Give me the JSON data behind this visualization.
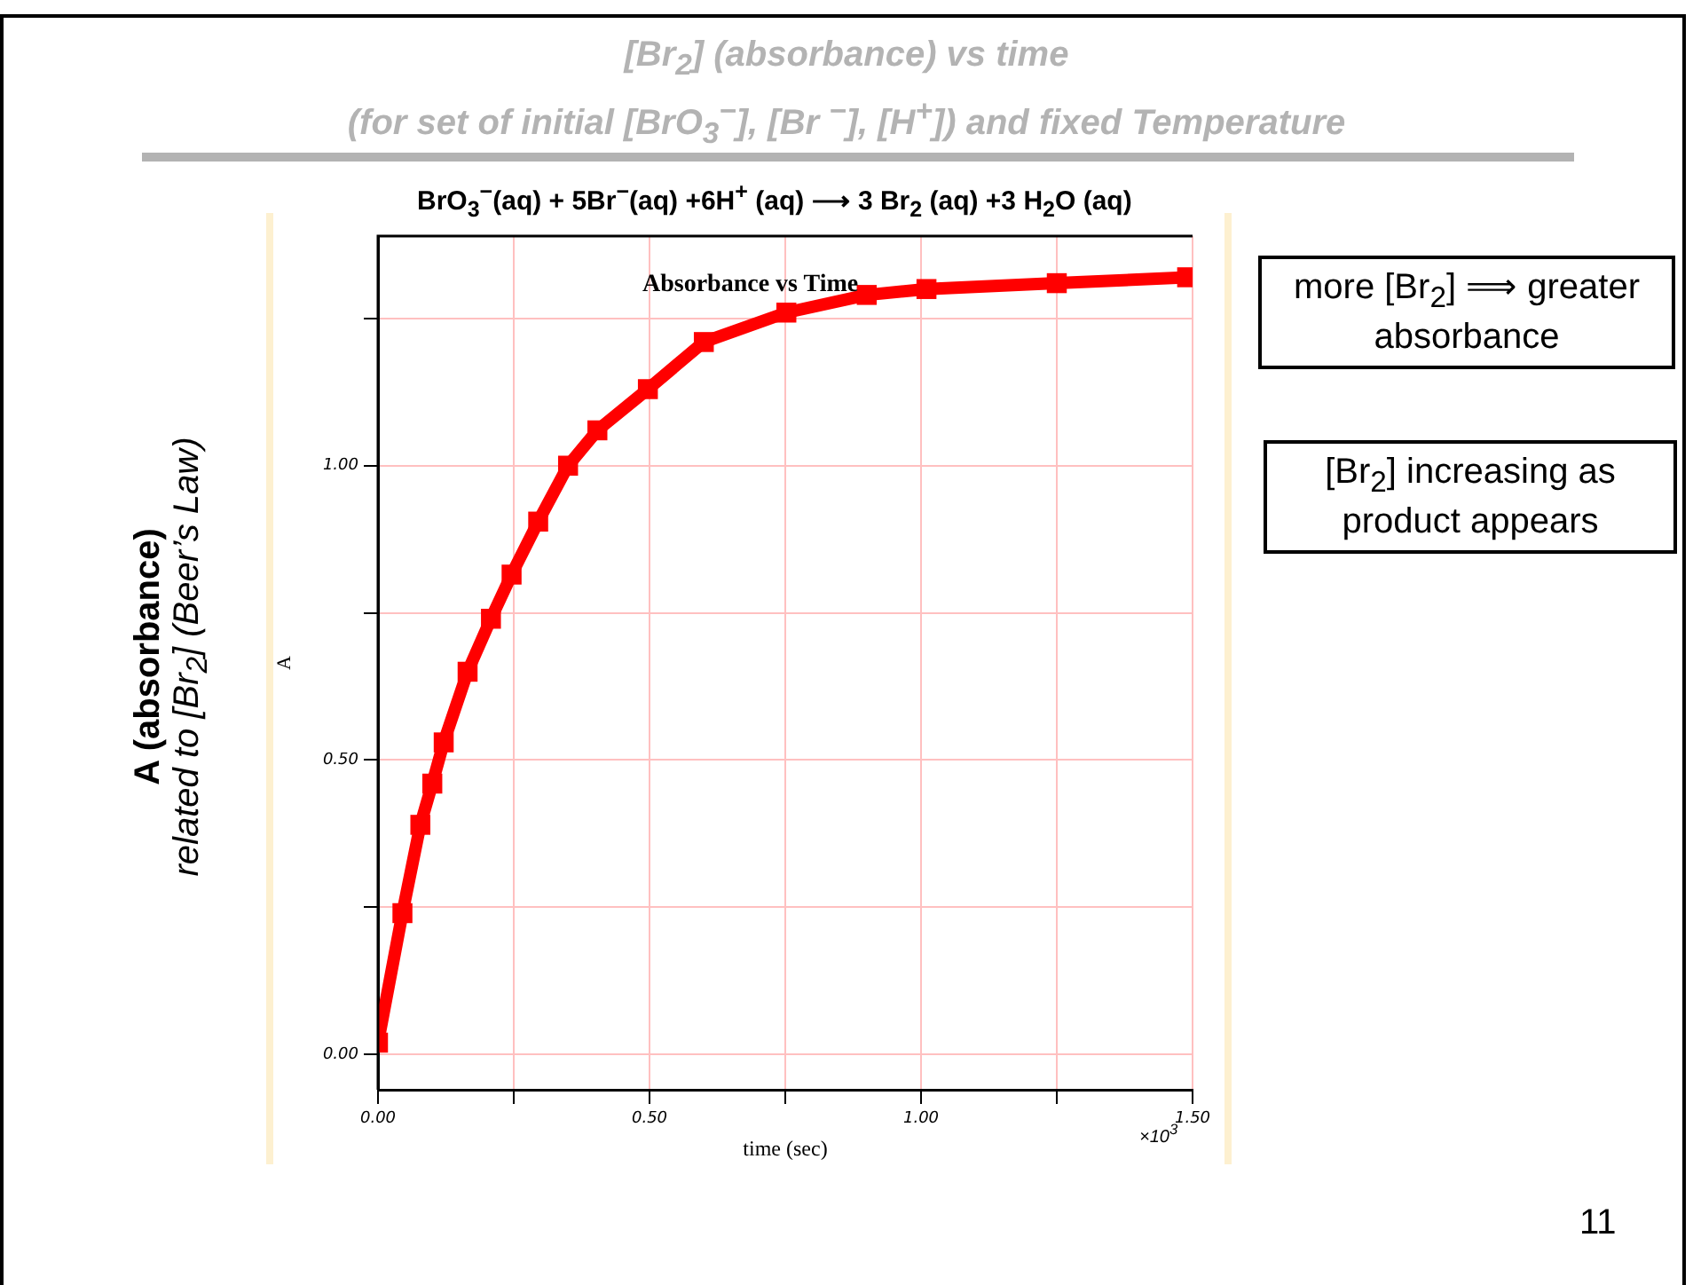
{
  "chart_data": {
    "type": "line",
    "title": "[Br$_{2}$]  (absorbance)  vs time",
    "subtitle": "(for set of initial [BrO$_{3}$$^{−}$], [Br $^{−}$], [H$^{+}$]) and fixed Temperature",
    "xlabel": "time (sec)",
    "ylabel": "A",
    "annotations": [
      "BrO$_{3}$$^{−}$(aq) + 5Br$^{−}$(aq) +6H$^{+}$ (aq)  ⟶  3 Br$_{2}$ (aq) +3 H$_{2}$O (aq)",
      "Absorbance vs Time",
      "A (absorbance)",
      "related to  [Br$_{2}$]  (Beer’s Law)",
      "more [Br$_{2}$] ⟹ greater absorbance",
      "[Br$_{2}$] increasing as product appears",
      "×10$^{3}$",
      "11"
    ],
    "x": [
      0,
      0.045,
      0.078,
      0.1,
      0.121,
      0.165,
      0.208,
      0.246,
      0.295,
      0.35,
      0.404,
      0.497,
      0.6,
      0.752,
      0.9,
      1.01,
      1.25,
      1.49
    ],
    "series": [
      {
        "color": "#ff0000",
        "values": [
          0.02,
          0.24,
          0.39,
          0.46,
          0.53,
          0.65,
          0.74,
          0.815,
          0.905,
          1.0,
          1.06,
          1.13,
          1.21,
          1.26,
          1.29,
          1.3,
          1.31,
          1.32
        ]
      }
    ],
    "xlim": [
      0,
      1.5
    ],
    "ylim": [
      -0.06,
      1.39
    ],
    "xticks": [
      {
        "value": 0,
        "label": "0.00"
      },
      {
        "value": 0.25,
        "label": null
      },
      {
        "value": 0.5,
        "label": "0.50"
      },
      {
        "value": 0.75,
        "label": null
      },
      {
        "value": 1,
        "label": "1.00"
      },
      {
        "value": 1.25,
        "label": null
      },
      {
        "value": 1.5,
        "label": "1.50"
      }
    ],
    "yticks": [
      {
        "value": 0,
        "label": "0.00"
      },
      {
        "value": 0.25,
        "label": null
      },
      {
        "value": 0.5,
        "label": "0.50"
      },
      {
        "value": 0.75,
        "label": null
      },
      {
        "value": 1,
        "label": "1.00"
      },
      {
        "value": 1.25,
        "label": null
      }
    ],
    "grid": true,
    "legend": false,
    "marker": "square",
    "line_style": "solid"
  }
}
